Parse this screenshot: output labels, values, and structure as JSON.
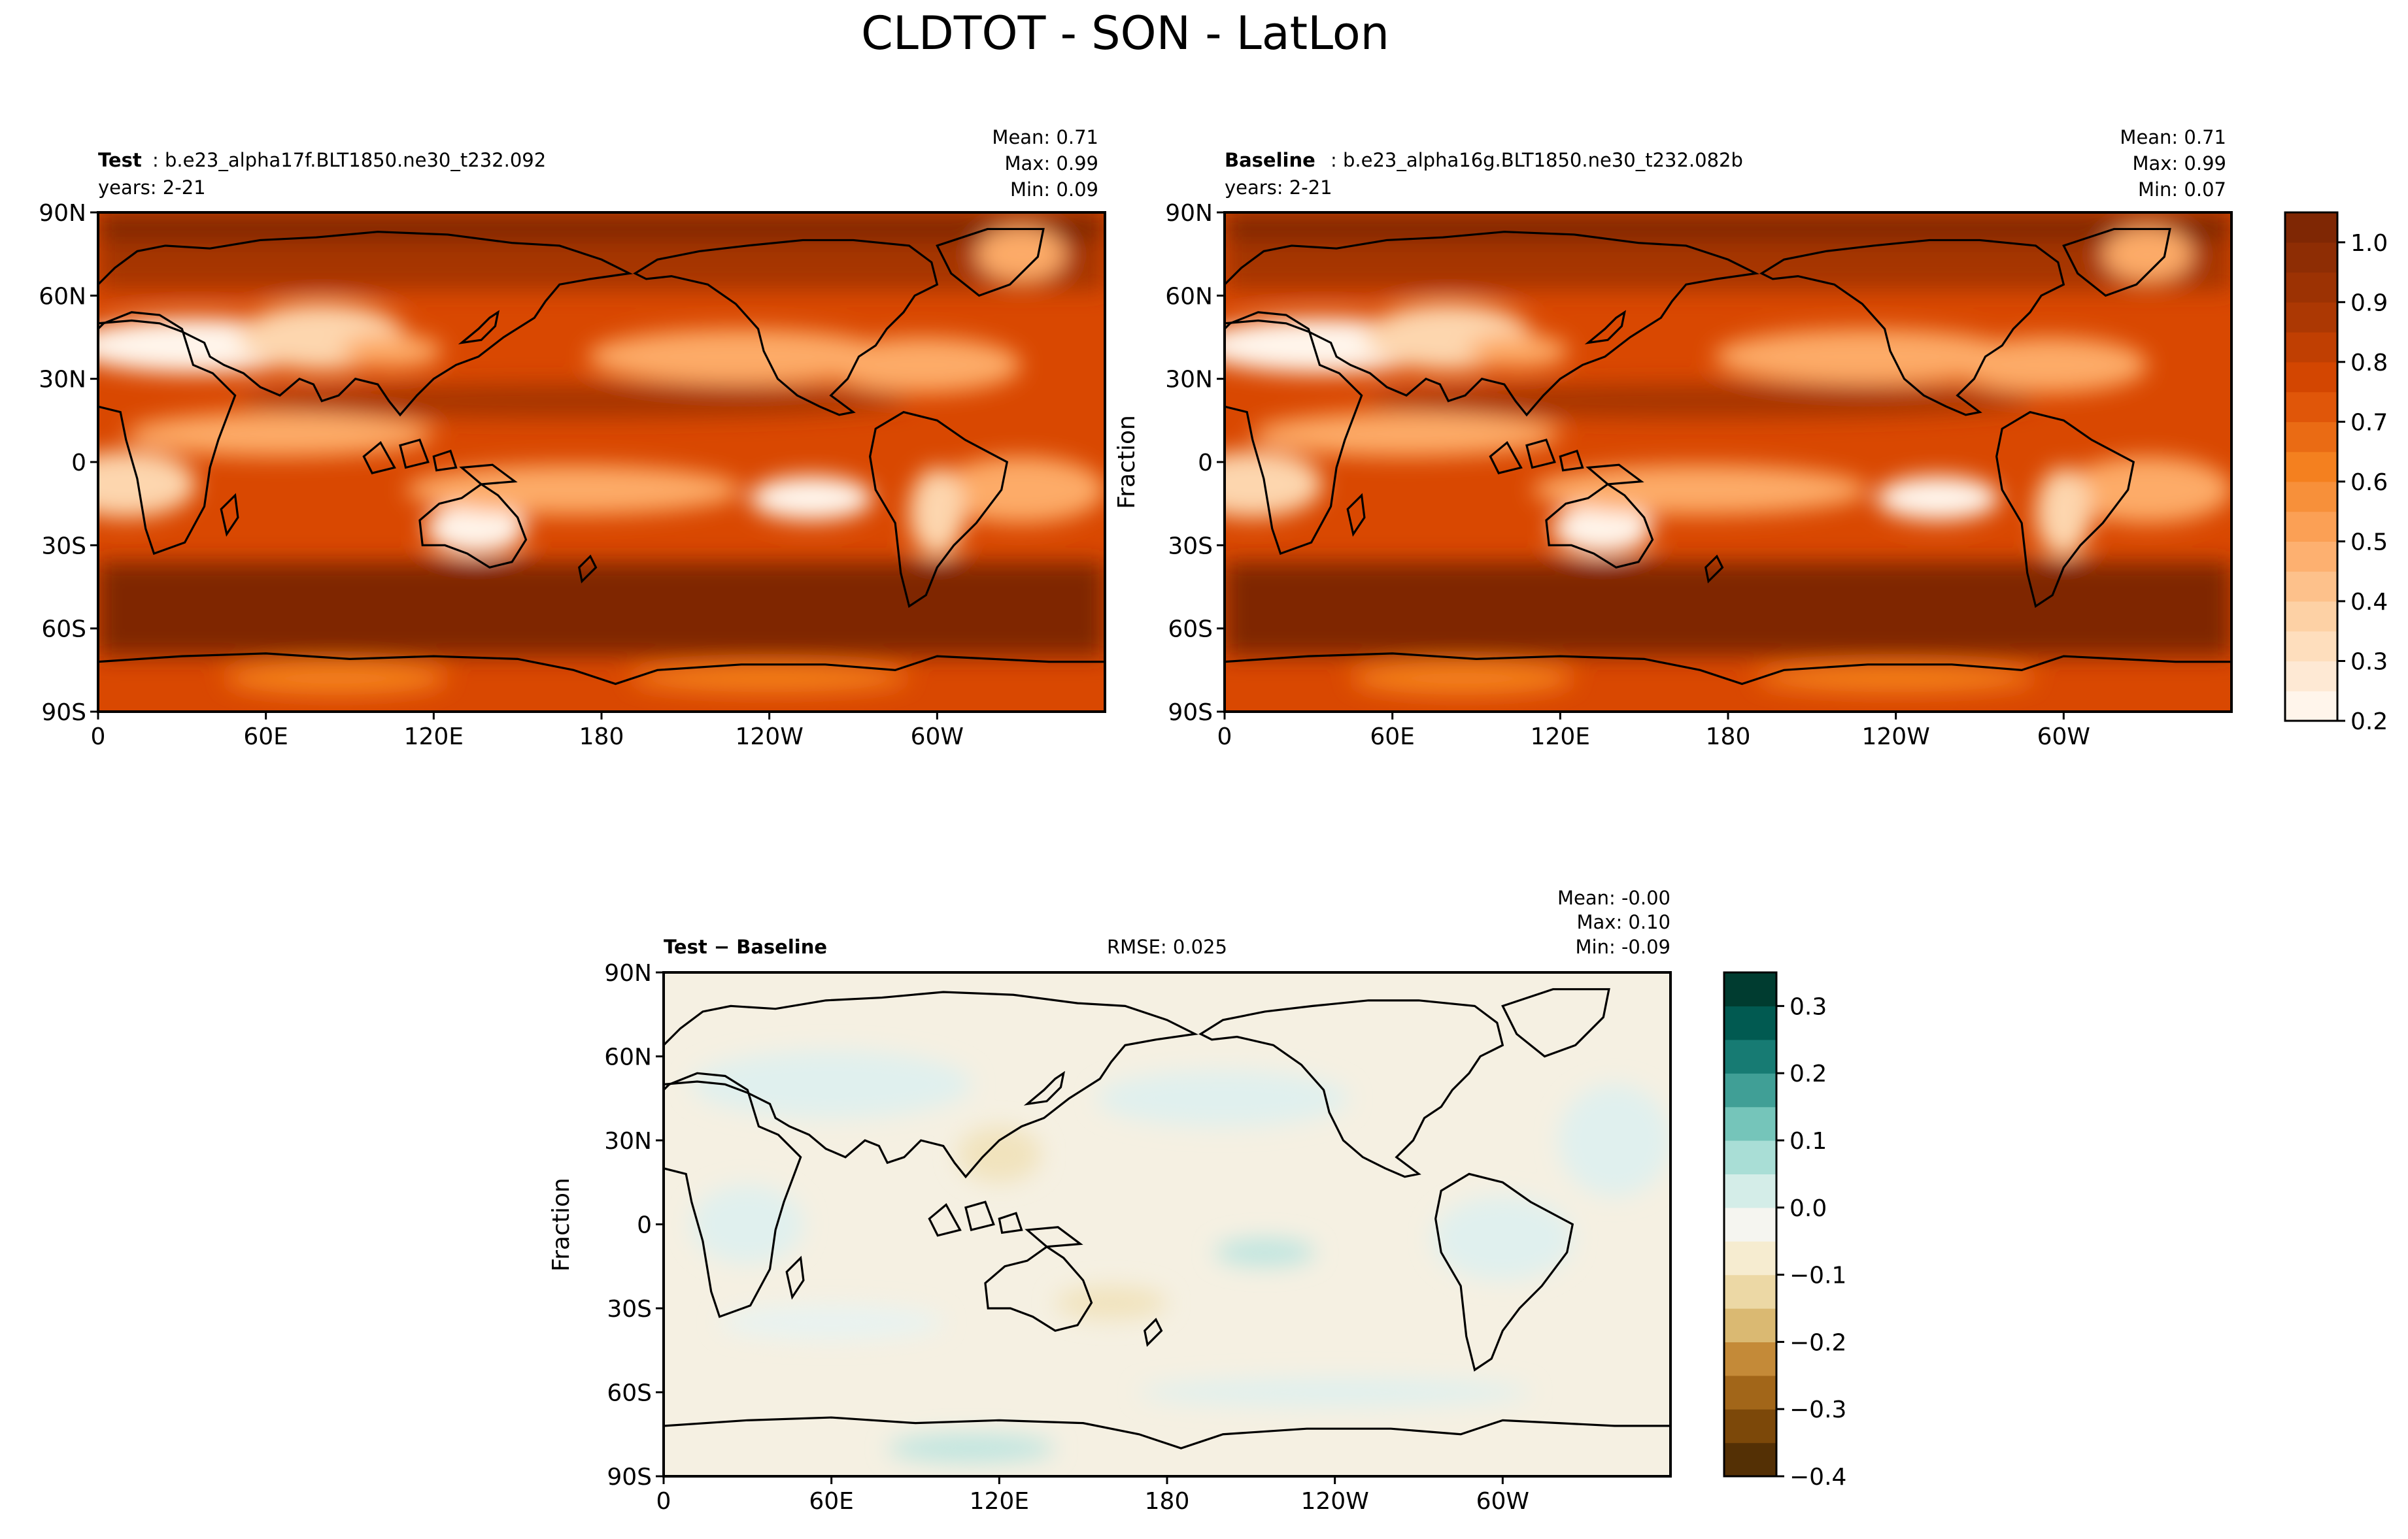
{
  "figure": {
    "title": "CLDTOT - SON - LatLon"
  },
  "lat_ticks": [
    "90N",
    "60N",
    "30N",
    "0",
    "30S",
    "60S",
    "90S"
  ],
  "lon_ticks": [
    "0",
    "60E",
    "120E",
    "180",
    "120W",
    "60W"
  ],
  "panels": {
    "test": {
      "label_bold": "Test",
      "label_text": ": b.e23_alpha17f.BLT1850.ne30_t232.092",
      "years": "years: 2-21",
      "stats": [
        "Mean:  0.71",
        "Max:  0.99",
        "Min:  0.09"
      ]
    },
    "baseline": {
      "label_bold": "Baseline",
      "label_text": ": b.e23_alpha16g.BLT1850.ne30_t232.082b",
      "years": "years: 2-21",
      "stats": [
        "Mean:  0.71",
        "Max:  0.99",
        "Min:  0.07"
      ],
      "ylabel": "Fraction"
    },
    "diff": {
      "label_bold": "Test − Baseline",
      "rmse": "RMSE: 0.025",
      "stats": [
        "Mean: -0.00",
        "Max:  0.10",
        "Min: -0.09"
      ],
      "ylabel": "Fraction"
    }
  },
  "colorbar_main": {
    "colormap": "Oranges",
    "range": [
      0.2,
      1.05
    ],
    "levels": 17,
    "tick_values": [
      0.2,
      0.3,
      0.4,
      0.5,
      0.6,
      0.7,
      0.8,
      0.9,
      1.0
    ],
    "tick_labels": [
      "0.2",
      "0.3",
      "0.4",
      "0.5",
      "0.6",
      "0.7",
      "0.8",
      "0.9",
      "1.0"
    ],
    "colors_low_to_high": [
      "#fff5eb",
      "#fdd6ae",
      "#fdab67",
      "#f4801f",
      "#d94801",
      "#a63603",
      "#7f2704"
    ]
  },
  "colorbar_diff": {
    "colormap": "BrBG",
    "range": [
      -0.4,
      0.35
    ],
    "levels": 15,
    "tick_values": [
      -0.4,
      -0.3,
      -0.2,
      -0.1,
      0.0,
      0.1,
      0.2,
      0.3
    ],
    "tick_labels": [
      "−0.4",
      "−0.3",
      "−0.2",
      "−0.1",
      "0.0",
      "0.1",
      "0.2",
      "0.3"
    ],
    "colors_low_to_high": [
      "#543005",
      "#8c510a",
      "#bf812d",
      "#dfc27d",
      "#f6e8c3",
      "#f5f5f0",
      "#c7eae5",
      "#80cdc1",
      "#35978f",
      "#01665e",
      "#003c30"
    ]
  },
  "chart_data": [
    {
      "type": "heatmap",
      "title": "Test: b.e23_alpha17f.BLT1850.ne30_t232.092",
      "variable": "CLDTOT",
      "xlabel": "",
      "ylabel": "",
      "x_ticks": [
        "0",
        "60E",
        "120E",
        "180",
        "120W",
        "60W"
      ],
      "y_ticks": [
        "90N",
        "60N",
        "30N",
        "0",
        "30S",
        "60S",
        "90S"
      ],
      "xlim": [
        0,
        360
      ],
      "ylim": [
        -90,
        90
      ],
      "value_range": [
        0.2,
        1.05
      ],
      "mean": 0.71,
      "max": 0.99,
      "min": 0.09
    },
    {
      "type": "heatmap",
      "title": "Baseline: b.e23_alpha16g.BLT1850.ne30_t232.082b",
      "variable": "CLDTOT",
      "xlabel": "",
      "ylabel": "Fraction",
      "x_ticks": [
        "0",
        "60E",
        "120E",
        "180",
        "120W",
        "60W"
      ],
      "y_ticks": [
        "90N",
        "60N",
        "30N",
        "0",
        "30S",
        "60S",
        "90S"
      ],
      "xlim": [
        0,
        360
      ],
      "ylim": [
        -90,
        90
      ],
      "value_range": [
        0.2,
        1.05
      ],
      "mean": 0.71,
      "max": 0.99,
      "min": 0.07
    },
    {
      "type": "heatmap",
      "title": "Test − Baseline",
      "variable": "CLDTOT",
      "xlabel": "",
      "ylabel": "Fraction",
      "x_ticks": [
        "0",
        "60E",
        "120E",
        "180",
        "120W",
        "60W"
      ],
      "y_ticks": [
        "90N",
        "60N",
        "30N",
        "0",
        "30S",
        "60S",
        "90S"
      ],
      "xlim": [
        0,
        360
      ],
      "ylim": [
        -90,
        90
      ],
      "value_range": [
        -0.4,
        0.35
      ],
      "rmse": 0.025,
      "mean": -0.0,
      "max": 0.1,
      "min": -0.09
    }
  ]
}
